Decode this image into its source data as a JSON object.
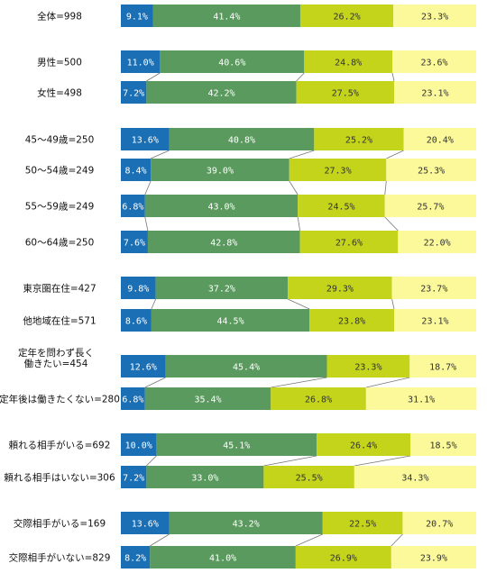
{
  "chart_data": {
    "type": "bar",
    "orientation": "horizontal",
    "stacked": "100%",
    "title": "",
    "xlabel": "",
    "ylabel": "",
    "xlim": [
      0,
      100
    ],
    "grid": false,
    "legend": "none",
    "categories": [
      "全体=998",
      "男性=500",
      "女性=498",
      "45～49歳=250",
      "50～54歳=249",
      "55～59歳=249",
      "60～64歳=250",
      "東京圏在住=427",
      "他地域在住=571",
      "定年を問わず長く 働きたい=454",
      "定年後は働きたくない=280",
      "頼れる相手がいる=692",
      "頼れる相手はいない=306",
      "交際相手がいる=169",
      "交際相手がいない=829"
    ],
    "category_lines": [
      [
        "全体=998"
      ],
      [
        "男性=500"
      ],
      [
        "女性=498"
      ],
      [
        "45～49歳=250"
      ],
      [
        "50～54歳=249"
      ],
      [
        "55～59歳=249"
      ],
      [
        "60～64歳=250"
      ],
      [
        "東京圏在住=427"
      ],
      [
        "他地域在住=571"
      ],
      [
        "定年を問わず長く",
        "働きたい=454"
      ],
      [
        "定年後は働きたくない=280"
      ],
      [
        "頼れる相手がいる=692"
      ],
      [
        "頼れる相手はいない=306"
      ],
      [
        "交際相手がいる=169"
      ],
      [
        "交際相手がいない=829"
      ]
    ],
    "groups": [
      [
        0
      ],
      [
        1,
        2
      ],
      [
        3,
        4,
        5,
        6
      ],
      [
        7,
        8
      ],
      [
        9,
        10
      ],
      [
        11,
        12
      ],
      [
        13,
        14
      ]
    ],
    "series": [
      {
        "color": "#1a6fb5",
        "label_color": "#ffffff",
        "values": [
          9.1,
          11.0,
          7.2,
          13.6,
          8.4,
          6.8,
          7.6,
          9.8,
          8.6,
          12.6,
          6.8,
          10.0,
          7.2,
          13.6,
          8.2
        ],
        "labels": [
          "9.1%",
          "11.0%",
          "7.2%",
          "13.6%",
          "8.4%",
          "6.8%",
          "7.6%",
          "9.8%",
          "8.6%",
          "12.6%",
          "6.8%",
          "10.0%",
          "7.2%",
          "13.6%",
          "8.2%"
        ]
      },
      {
        "color": "#5b9a5e",
        "label_color": "#ffffff",
        "values": [
          41.4,
          40.6,
          42.2,
          40.8,
          39.0,
          43.0,
          42.8,
          37.2,
          44.5,
          45.4,
          35.4,
          45.1,
          33.0,
          43.2,
          41.0
        ],
        "labels": [
          "41.4%",
          "40.6%",
          "42.2%",
          "40.8%",
          "39.0%",
          "43.0%",
          "42.8%",
          "37.2%",
          "44.5%",
          "45.4%",
          "35.4%",
          "45.1%",
          "33.0%",
          "43.2%",
          "41.0%"
        ]
      },
      {
        "color": "#c3d41a",
        "label_color": "#333333",
        "values": [
          26.2,
          24.8,
          27.5,
          25.2,
          27.3,
          24.5,
          27.6,
          29.3,
          23.8,
          23.3,
          26.8,
          26.4,
          25.5,
          22.5,
          26.9
        ],
        "labels": [
          "26.2%",
          "24.8%",
          "27.5%",
          "25.2%",
          "27.3%",
          "24.5%",
          "27.6%",
          "29.3%",
          "23.8%",
          "23.3%",
          "26.8%",
          "26.4%",
          "25.5%",
          "22.5%",
          "26.9%"
        ]
      },
      {
        "color": "#fbf99a",
        "label_color": "#333333",
        "values": [
          23.3,
          23.6,
          23.1,
          20.4,
          25.3,
          25.7,
          22.0,
          23.7,
          23.1,
          18.7,
          31.1,
          18.5,
          34.3,
          20.7,
          23.9
        ],
        "labels": [
          "23.3%",
          "23.6%",
          "23.1%",
          "20.4%",
          "25.3%",
          "25.7%",
          "22.0%",
          "23.7%",
          "23.1%",
          "18.7%",
          "31.1%",
          "18.5%",
          "34.3%",
          "20.7%",
          "23.9%"
        ]
      }
    ]
  }
}
